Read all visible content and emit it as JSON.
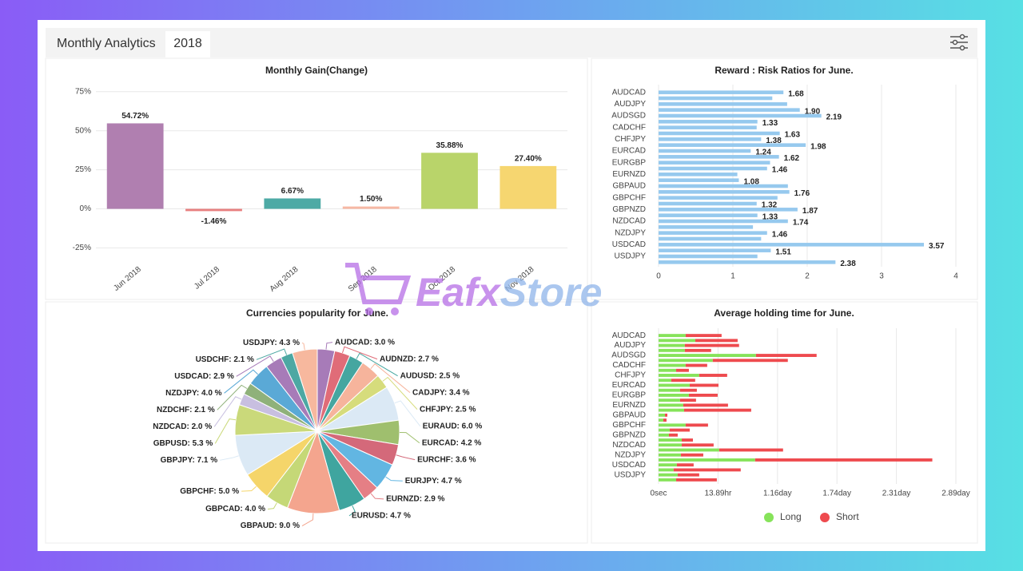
{
  "header": {
    "title": "Monthly Analytics",
    "tab": "2018"
  },
  "watermark": {
    "left": "Eafx",
    "right": "Store"
  },
  "chart_data": [
    {
      "type": "bar",
      "title": "Monthly Gain(Change)",
      "categories": [
        "Jun 2018",
        "Jul 2018",
        "Aug 2018",
        "Sep 2018",
        "Oct 2018",
        "Nov 2018"
      ],
      "values": [
        54.72,
        -1.46,
        6.67,
        1.5,
        35.88,
        27.4
      ],
      "value_labels": [
        "54.72%",
        "-1.46%",
        "6.67%",
        "1.50%",
        "35.88%",
        "27.40%"
      ],
      "colors": [
        "#b07fb0",
        "#e88080",
        "#4daaa5",
        "#f7b8a4",
        "#b9d46a",
        "#f6d670"
      ],
      "ylim": [
        -35,
        80
      ],
      "yticks": [
        {
          "value": 75,
          "label": "75%"
        },
        {
          "value": 50,
          "label": "50%"
        },
        {
          "value": 25,
          "label": "25%"
        },
        {
          "value": 0,
          "label": "0%"
        },
        {
          "value": -25,
          "label": "-25%"
        }
      ],
      "grid": true
    },
    {
      "type": "barh",
      "title": "Reward : Risk Ratios for June.",
      "categories": [
        "AUDCAD",
        null,
        "AUDJPY",
        null,
        "AUDSGD",
        null,
        "CADCHF",
        null,
        "CHFJPY",
        null,
        "EURCAD",
        null,
        "EURGBP",
        null,
        "EURNZD",
        null,
        "GBPAUD",
        null,
        "GBPCHF",
        null,
        "GBPNZD",
        null,
        "NZDCAD",
        null,
        "NZDJPY",
        null,
        "USDCAD",
        null,
        "USDJPY",
        null
      ],
      "values": [
        1.68,
        1.53,
        1.73,
        1.9,
        2.19,
        1.33,
        1.32,
        1.63,
        1.38,
        1.98,
        1.24,
        1.62,
        1.5,
        1.46,
        1.06,
        1.08,
        1.74,
        1.76,
        1.6,
        1.32,
        1.87,
        1.33,
        1.74,
        1.27,
        1.46,
        1.38,
        3.57,
        1.51,
        1.33,
        2.38
      ],
      "value_labels": [
        "1.68",
        null,
        null,
        "1.90",
        "2.19",
        "1.33",
        null,
        "1.63",
        "1.38",
        "1.98",
        "1.24",
        "1.62",
        null,
        "1.46",
        null,
        "1.08",
        null,
        "1.76",
        null,
        "1.32",
        "1.87",
        "1.33",
        "1.74",
        null,
        "1.46",
        null,
        "3.57",
        "1.51",
        null,
        "2.38"
      ],
      "color": "#96c9ee",
      "xlim": [
        0,
        4
      ],
      "xticks": [
        0,
        1,
        2,
        3,
        4
      ],
      "grid": true
    },
    {
      "type": "pie",
      "title": "Currencies popularity for June.",
      "labels": [
        "AUDCAD: 3.0 %",
        "AUDNZD: 2.7 %",
        "AUDUSD: 2.5 %",
        "CADJPY: 3.4 %",
        "CHFJPY: 2.5 %",
        "EURAUD: 6.0 %",
        "EURCAD: 4.2 %",
        "EURCHF: 3.6 %",
        "EURJPY: 4.7 %",
        "EURNZD: 2.9 %",
        "EURUSD: 4.7 %",
        "GBPAUD: 9.0 %",
        "GBPCAD: 4.0 %",
        "GBPCHF: 5.0 %",
        "GBPJPY: 7.1 %",
        "GBPUSD: 5.3 %",
        "NZDCAD: 2.0 %",
        "NZDCHF: 2.1 %",
        "NZDJPY: 4.0 %",
        "USDCAD: 2.9 %",
        "USDCHF: 2.1 %",
        "USDJPY: 4.3 %"
      ],
      "values": [
        3.0,
        2.7,
        2.5,
        3.4,
        2.5,
        6.0,
        4.2,
        3.6,
        4.7,
        2.9,
        4.7,
        9.0,
        4.0,
        5.0,
        7.1,
        5.3,
        2.0,
        2.1,
        4.0,
        2.9,
        2.1,
        4.3
      ],
      "colors": [
        "#a77bb8",
        "#e06c78",
        "#45a6a0",
        "#f6b49c",
        "#d6dc7c",
        "#dbe9f5",
        "#9fbf6e",
        "#d4697a",
        "#62b6e2",
        "#e57f85",
        "#3fa59f",
        "#f4a58e",
        "#c5d877",
        "#f5d56a",
        "#dbe9f5",
        "#cad97a",
        "#c8bfe0",
        "#8fb17a",
        "#5aa9d6",
        "#a77bb8",
        "#4da8a3",
        "#f7b89e"
      ]
    },
    {
      "type": "barh",
      "title": "Average holding time for June.",
      "stacked": true,
      "legend": "bottom",
      "categories": [
        "AUDCAD",
        null,
        "AUDJPY",
        null,
        "AUDSGD",
        null,
        "CADCHF",
        null,
        "CHFJPY",
        null,
        "EURCAD",
        null,
        "EURGBP",
        null,
        "EURNZD",
        null,
        "GBPAUD",
        null,
        "GBPCHF",
        null,
        "GBPNZD",
        null,
        "NZDCAD",
        null,
        "NZDJPY",
        null,
        "USDCAD",
        null,
        "USDJPY",
        null
      ],
      "series": [
        {
          "name": "Long",
          "color": "#86e35a",
          "values": [
            22800,
            30900,
            22100,
            22100,
            81900,
            45600,
            22800,
            14800,
            34200,
            10700,
            26200,
            18100,
            25500,
            18100,
            20800,
            21500,
            5400,
            4000,
            22800,
            9400,
            8700,
            19500,
            19500,
            51000,
            18800,
            81200,
            15400,
            12700,
            16100,
            14800
          ]
        },
        {
          "name": "Short",
          "color": "#ee4a4e",
          "values": [
            30200,
            35600,
            45600,
            22100,
            51000,
            63100,
            18100,
            10700,
            23500,
            20100,
            24200,
            14100,
            24200,
            13400,
            37600,
            56400,
            2000,
            2700,
            18800,
            16800,
            7400,
            9400,
            26800,
            53700,
            18800,
            149000,
            14100,
            56400,
            18100,
            34200
          ]
        }
      ],
      "xlim": [
        0,
        250000
      ],
      "xticks": [
        {
          "value": 0,
          "label": "0sec"
        },
        {
          "value": 50000,
          "label": "13.89hr"
        },
        {
          "value": 100000,
          "label": "1.16day"
        },
        {
          "value": 150000,
          "label": "1.74day"
        },
        {
          "value": 200000,
          "label": "2.31day"
        },
        {
          "value": 250000,
          "label": "2.89day"
        }
      ],
      "grid": true
    }
  ]
}
